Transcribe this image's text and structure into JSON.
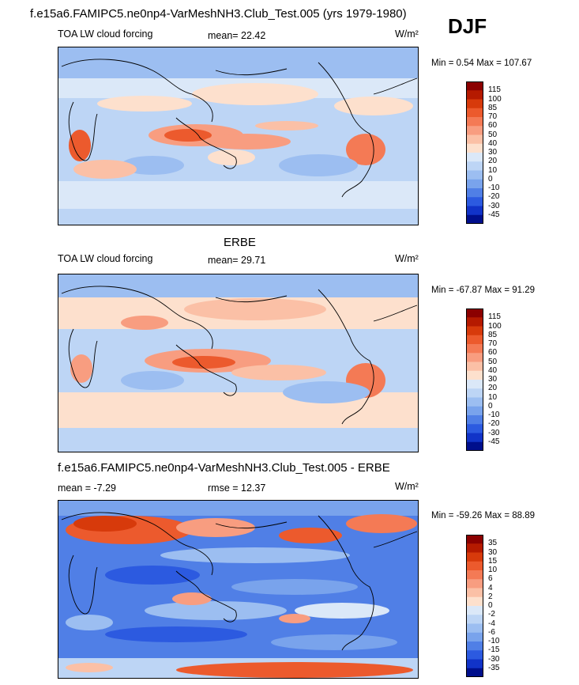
{
  "header": {
    "title": "f.e15a6.FAMIPC5.ne0np4-VarMeshNH3.Club_Test.005 (yrs 1979-1980)",
    "season": "DJF"
  },
  "panels": [
    {
      "heading": "",
      "left_label": "TOA LW cloud forcing",
      "mid_label": "mean=  22.42",
      "units": "W/m²",
      "minmax": "Min =   0.54 Max = 107.67",
      "colorbar_labels": [
        "115",
        "100",
        "85",
        "70",
        "60",
        "50",
        "40",
        "30",
        "20",
        "10",
        "0",
        "-10",
        "-20",
        "-30",
        "-45"
      ],
      "colorbar_colors": [
        "#8b0000",
        "#b51a00",
        "#d73a0b",
        "#ec5a2d",
        "#f47a55",
        "#f89d80",
        "#fbc0a6",
        "#fde0cd",
        "#dbe8f8",
        "#bdd5f5",
        "#9cbef1",
        "#79a3ec",
        "#507fe6",
        "#2c5ae0",
        "#1133c8",
        "#000f8c"
      ],
      "colorbar_spec": "115 to -45"
    },
    {
      "heading": "ERBE",
      "left_label": "TOA LW cloud forcing",
      "mid_label": "mean=  29.71",
      "units": "W/m²",
      "minmax": "Min = -67.87 Max =  91.29",
      "colorbar_labels": [
        "115",
        "100",
        "85",
        "70",
        "60",
        "50",
        "40",
        "30",
        "20",
        "10",
        "0",
        "-10",
        "-20",
        "-30",
        "-45"
      ],
      "colorbar_colors": [
        "#8b0000",
        "#b51a00",
        "#d73a0b",
        "#ec5a2d",
        "#f47a55",
        "#f89d80",
        "#fbc0a6",
        "#fde0cd",
        "#dbe8f8",
        "#bdd5f5",
        "#9cbef1",
        "#79a3ec",
        "#507fe6",
        "#2c5ae0",
        "#1133c8",
        "#000f8c"
      ]
    },
    {
      "heading": "f.e15a6.FAMIPC5.ne0np4-VarMeshNH3.Club_Test.005 - ERBE",
      "left_label": "mean =  -7.29",
      "mid_label": "rmse =  12.37",
      "units": "W/m²",
      "minmax": "Min = -59.26 Max =  88.89",
      "colorbar_labels": [
        "35",
        "30",
        "15",
        "10",
        "6",
        "4",
        "2",
        "0",
        "-2",
        "-4",
        "-6",
        "-10",
        "-15",
        "-30",
        "-35"
      ],
      "colorbar_colors": [
        "#8b0000",
        "#b51a00",
        "#d73a0b",
        "#ec5a2d",
        "#f47a55",
        "#f89d80",
        "#fbc0a6",
        "#fde0cd",
        "#dbe8f8",
        "#bdd5f5",
        "#9cbef1",
        "#79a3ec",
        "#507fe6",
        "#2c5ae0",
        "#1133c8",
        "#000f8c"
      ]
    }
  ]
}
